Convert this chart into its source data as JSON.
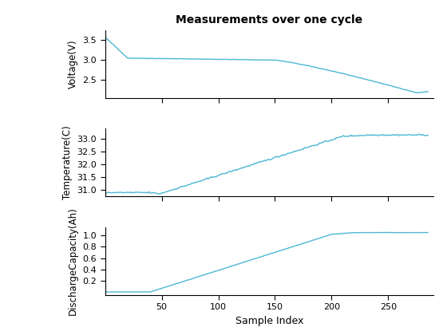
{
  "title": "Measurements over one cycle",
  "xlabel": "Sample Index",
  "line_color": "#4db8d4",
  "line_width": 1.0,
  "n_samples": 285,
  "voltage": {
    "ylabel": "Voltage(V)",
    "yticks": [
      2.5,
      3.0,
      3.5
    ],
    "ylim": [
      2.05,
      3.75
    ]
  },
  "temperature": {
    "ylabel": "Temperature(C)",
    "yticks": [
      31.0,
      31.5,
      32.0,
      32.5,
      33.0
    ],
    "ylim": [
      30.75,
      33.4
    ]
  },
  "capacity": {
    "ylabel": "DischargeCapacity(Ah)",
    "yticks": [
      0.2,
      0.4,
      0.6,
      0.8,
      1.0
    ],
    "ylim": [
      -0.05,
      1.15
    ]
  },
  "xlim": [
    0,
    290
  ],
  "xticks": [
    50,
    100,
    150,
    200,
    250
  ]
}
